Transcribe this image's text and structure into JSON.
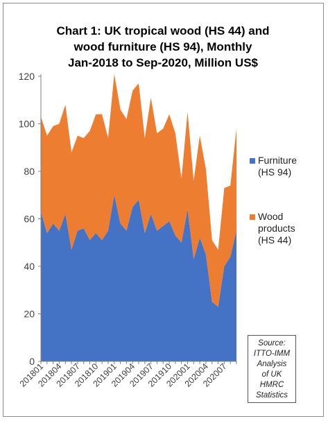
{
  "chart_data": {
    "type": "area",
    "title_lines": [
      "Chart 1: UK tropical wood (HS 44) and",
      "wood furniture (HS 94), Monthly",
      "Jan-2018 to Sep-2020, Million US$"
    ],
    "stacked": true,
    "x": [
      "201801",
      "201802",
      "201803",
      "201804",
      "201805",
      "201806",
      "201807",
      "201808",
      "201809",
      "201810",
      "201811",
      "201812",
      "201901",
      "201902",
      "201903",
      "201904",
      "201905",
      "201906",
      "201907",
      "201908",
      "201909",
      "201910",
      "201911",
      "201912",
      "202001",
      "202002",
      "202003",
      "202004",
      "202005",
      "202006",
      "202007",
      "202008",
      "202009"
    ],
    "x_tick_labels": [
      "201801",
      "201804",
      "201807",
      "201810",
      "201901",
      "201904",
      "201907",
      "201910",
      "202001",
      "202004",
      "202007"
    ],
    "ylim": [
      0,
      120
    ],
    "y_ticks": [
      0,
      20,
      40,
      60,
      80,
      100,
      120
    ],
    "grid": false,
    "legend_position": "right",
    "series": [
      {
        "name": "Furniture (HS 94)",
        "legend_lines": [
          "Furniture",
          "(HS 94)"
        ],
        "color": "#4472C4",
        "values": [
          63,
          54,
          58,
          55,
          62,
          47,
          55,
          56,
          51,
          54,
          51,
          55,
          70,
          58,
          55,
          65,
          68,
          54,
          62,
          55,
          57,
          59,
          53,
          50,
          64,
          43,
          52,
          45,
          25,
          23,
          40,
          44,
          55
        ]
      },
      {
        "name": "Wood products (HS 44)",
        "legend_lines": [
          "Wood",
          "products",
          "(HS 44)"
        ],
        "color": "#ED7D31",
        "values": [
          40,
          41,
          41,
          45,
          46,
          41,
          40,
          38,
          46,
          50,
          53,
          39,
          51,
          48,
          47,
          49,
          49,
          40,
          49,
          41,
          41,
          45,
          43,
          27,
          41,
          33,
          43,
          36,
          26,
          24,
          33,
          30,
          43
        ]
      }
    ]
  },
  "source_lines": [
    "Source:",
    "ITTO-IMM",
    "Analysis",
    "of UK",
    "HMRC",
    "Statistics"
  ]
}
